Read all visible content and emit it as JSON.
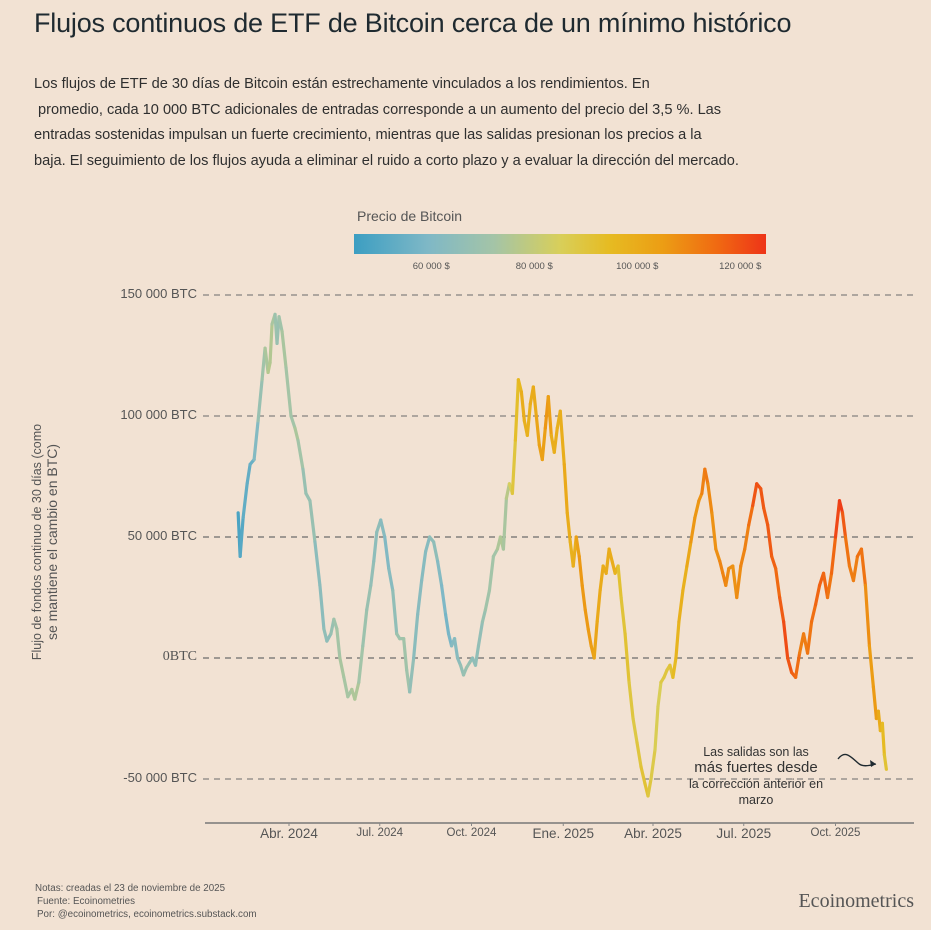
{
  "title": "Flujos continuos de ETF de Bitcoin cerca de un mínimo histórico",
  "subtitle_lines": [
    "Los flujos de ETF de 30 días de Bitcoin están estrechamente vinculados a los rendimientos. En",
    "promedio, cada 10 000 BTC adicionales de entradas corresponde a un aumento del precio del 3,5 %. Las",
    "entradas sostenidas impulsan un fuerte crecimiento, mientras que las salidas presionan los precios a la",
    "baja. El seguimiento de los flujos ayuda a eliminar el ruido a corto plazo y a evaluar la dirección del mercado."
  ],
  "legend": {
    "title": "Precio de Bitcoin",
    "ticks": [
      "60 000 $",
      "80 000 $",
      "100 000 $",
      "120 000 $"
    ],
    "tick_values": [
      60000,
      80000,
      100000,
      120000
    ],
    "range": [
      45000,
      125000
    ],
    "colors": [
      "#3c9ec2",
      "#7fb8c6",
      "#a4c4a7",
      "#d8cf5a",
      "#e6bb22",
      "#ec9d14",
      "#f06a12",
      "#ee3418"
    ]
  },
  "notes": {
    "line1": "Notas: creadas el 23 de noviembre de 2025",
    "line2": "Fuente: Ecoinometries",
    "line3": "Por: @ecoinometrics, ecoinometrics.substack.com"
  },
  "brand": "Ecoinometrics",
  "annotation": {
    "line1": "Las salidas son las",
    "line2": "más fuertes desde",
    "line3": "la corrección anterior en",
    "line4": "marzo"
  },
  "chart_data": {
    "type": "line",
    "title": "Flujos continuos de ETF de Bitcoin cerca de un mínimo histórico",
    "xlabel": "",
    "ylabel": "Flujo de fondos continuo de 30 días (como se mantiene el cambio en BTC)",
    "y_unit": "BTC",
    "ylim": [
      -60000,
      150000
    ],
    "y_ticks": [
      150000,
      100000,
      50000,
      0,
      -50000
    ],
    "y_tick_labels": [
      "150 000 BTC",
      "100 000 BTC",
      "50 000 BTC",
      "0BTC",
      "-50 000 BTC"
    ],
    "x_ticks": [
      "2024-04-01",
      "2024-07-01",
      "2024-10-01",
      "2025-01-01",
      "2025-04-01",
      "2025-07-01",
      "2025-10-01"
    ],
    "x_tick_labels": [
      "Abr. 2024",
      "Jul. 2024",
      "Oct. 2024",
      "Ene. 2025",
      "Abr. 2025",
      "Jul. 2025",
      "Oct. 2025"
    ],
    "xlim": [
      "2023-12-10",
      "2025-12-20"
    ],
    "grid": "horizontal dashed",
    "color_by": "Bitcoin price (USD)",
    "series": [
      {
        "name": "30-day rolling ETF flow (BTC), colored by BTC price",
        "points": [
          [
            "2024-02-10",
            60000,
            47000
          ],
          [
            "2024-02-12",
            42000,
            48000
          ],
          [
            "2024-02-15",
            58000,
            51000
          ],
          [
            "2024-02-19",
            72000,
            52000
          ],
          [
            "2024-02-22",
            80000,
            51500
          ],
          [
            "2024-02-26",
            82000,
            54000
          ],
          [
            "2024-03-01",
            98000,
            62000
          ],
          [
            "2024-03-05",
            115000,
            66000
          ],
          [
            "2024-03-08",
            128000,
            68000
          ],
          [
            "2024-03-11",
            118000,
            71000
          ],
          [
            "2024-03-13",
            122000,
            72000
          ],
          [
            "2024-03-15",
            138000,
            70000
          ],
          [
            "2024-03-18",
            142000,
            68000
          ],
          [
            "2024-03-20",
            130000,
            63000
          ],
          [
            "2024-03-22",
            141000,
            66000
          ],
          [
            "2024-03-25",
            135000,
            68000
          ],
          [
            "2024-03-29",
            120000,
            70000
          ],
          [
            "2024-04-03",
            100000,
            66000
          ],
          [
            "2024-04-07",
            95000,
            69000
          ],
          [
            "2024-04-10",
            90000,
            70000
          ],
          [
            "2024-04-15",
            78000,
            65000
          ],
          [
            "2024-04-18",
            68000,
            63000
          ],
          [
            "2024-04-22",
            65000,
            65000
          ],
          [
            "2024-04-27",
            48000,
            63000
          ],
          [
            "2024-05-02",
            30000,
            58000
          ],
          [
            "2024-05-06",
            12000,
            63000
          ],
          [
            "2024-05-09",
            7000,
            61000
          ],
          [
            "2024-05-13",
            10000,
            62000
          ],
          [
            "2024-05-16",
            16000,
            66000
          ],
          [
            "2024-05-19",
            12000,
            67000
          ],
          [
            "2024-05-22",
            0,
            69000
          ],
          [
            "2024-05-26",
            -8000,
            69000
          ],
          [
            "2024-05-30",
            -16000,
            68000
          ],
          [
            "2024-06-03",
            -13000,
            69000
          ],
          [
            "2024-06-06",
            -17000,
            71000
          ],
          [
            "2024-06-10",
            -10000,
            69000
          ],
          [
            "2024-06-14",
            5000,
            66000
          ],
          [
            "2024-06-18",
            20000,
            65000
          ],
          [
            "2024-06-22",
            30000,
            64000
          ],
          [
            "2024-06-25",
            40000,
            61000
          ],
          [
            "2024-06-28",
            52000,
            61000
          ],
          [
            "2024-07-02",
            57000,
            62000
          ],
          [
            "2024-07-06",
            50000,
            57000
          ],
          [
            "2024-07-10",
            37000,
            58000
          ],
          [
            "2024-07-14",
            28000,
            60000
          ],
          [
            "2024-07-18",
            10000,
            64000
          ],
          [
            "2024-07-21",
            8000,
            67000
          ],
          [
            "2024-07-25",
            8000,
            66000
          ],
          [
            "2024-07-28",
            -5000,
            68000
          ],
          [
            "2024-07-31",
            -14000,
            65000
          ],
          [
            "2024-08-04",
            0,
            60000
          ],
          [
            "2024-08-08",
            18000,
            60000
          ],
          [
            "2024-08-12",
            32000,
            59000
          ],
          [
            "2024-08-16",
            44000,
            59000
          ],
          [
            "2024-08-20",
            50000,
            59000
          ],
          [
            "2024-08-24",
            48000,
            64000
          ],
          [
            "2024-08-28",
            40000,
            59000
          ],
          [
            "2024-09-01",
            30000,
            57000
          ],
          [
            "2024-09-05",
            18000,
            56000
          ],
          [
            "2024-09-08",
            10000,
            54000
          ],
          [
            "2024-09-11",
            5000,
            57000
          ],
          [
            "2024-09-14",
            8000,
            60000
          ],
          [
            "2024-09-17",
            0,
            58000
          ],
          [
            "2024-09-20",
            -3000,
            63000
          ],
          [
            "2024-09-23",
            -7000,
            63000
          ],
          [
            "2024-09-26",
            -4000,
            65000
          ],
          [
            "2024-09-29",
            -2000,
            65000
          ],
          [
            "2024-10-02",
            0,
            61000
          ],
          [
            "2024-10-05",
            -3000,
            62000
          ],
          [
            "2024-10-08",
            5000,
            62000
          ],
          [
            "2024-10-12",
            15000,
            63000
          ],
          [
            "2024-10-15",
            20000,
            66000
          ],
          [
            "2024-10-19",
            28000,
            68000
          ],
          [
            "2024-10-23",
            42000,
            67000
          ],
          [
            "2024-10-27",
            45000,
            68000
          ],
          [
            "2024-10-30",
            50000,
            72000
          ],
          [
            "2024-11-02",
            45000,
            69000
          ],
          [
            "2024-11-05",
            66000,
            69000
          ],
          [
            "2024-11-08",
            72000,
            76000
          ],
          [
            "2024-11-11",
            68000,
            82000
          ],
          [
            "2024-11-14",
            90000,
            88000
          ],
          [
            "2024-11-17",
            115000,
            90000
          ],
          [
            "2024-11-20",
            110000,
            94000
          ],
          [
            "2024-11-23",
            98000,
            98000
          ],
          [
            "2024-11-26",
            92000,
            92000
          ],
          [
            "2024-11-29",
            105000,
            97000
          ],
          [
            "2024-12-02",
            112000,
            96000
          ],
          [
            "2024-12-05",
            100000,
            98000
          ],
          [
            "2024-12-08",
            88000,
            100000
          ],
          [
            "2024-12-11",
            82000,
            101000
          ],
          [
            "2024-12-14",
            95000,
            101000
          ],
          [
            "2024-12-17",
            108000,
            106000
          ],
          [
            "2024-12-20",
            92000,
            97000
          ],
          [
            "2024-12-23",
            85000,
            95000
          ],
          [
            "2024-12-26",
            95000,
            96000
          ],
          [
            "2024-12-29",
            102000,
            94000
          ],
          [
            "2025-01-02",
            80000,
            97000
          ],
          [
            "2025-01-05",
            60000,
            98000
          ],
          [
            "2025-01-08",
            48000,
            95000
          ],
          [
            "2025-01-11",
            38000,
            94000
          ],
          [
            "2025-01-14",
            50000,
            97000
          ],
          [
            "2025-01-17",
            42000,
            104000
          ],
          [
            "2025-01-20",
            30000,
            102000
          ],
          [
            "2025-01-23",
            20000,
            104000
          ],
          [
            "2025-01-26",
            12000,
            102000
          ],
          [
            "2025-01-29",
            5000,
            103000
          ],
          [
            "2025-02-01",
            0,
            100000
          ],
          [
            "2025-02-04",
            15000,
            98000
          ],
          [
            "2025-02-07",
            28000,
            97000
          ],
          [
            "2025-02-10",
            38000,
            97000
          ],
          [
            "2025-02-13",
            35000,
            96000
          ],
          [
            "2025-02-16",
            45000,
            97000
          ],
          [
            "2025-02-19",
            40000,
            96000
          ],
          [
            "2025-02-22",
            35000,
            96000
          ],
          [
            "2025-02-25",
            38000,
            91000
          ],
          [
            "2025-02-28",
            25000,
            84000
          ],
          [
            "2025-03-04",
            10000,
            88000
          ],
          [
            "2025-03-08",
            -10000,
            86000
          ],
          [
            "2025-03-12",
            -25000,
            83000
          ],
          [
            "2025-03-16",
            -35000,
            84000
          ],
          [
            "2025-03-20",
            -45000,
            86000
          ],
          [
            "2025-03-24",
            -52000,
            87000
          ],
          [
            "2025-03-27",
            -57000,
            87000
          ],
          [
            "2025-03-30",
            -50000,
            82000
          ],
          [
            "2025-04-03",
            -38000,
            83000
          ],
          [
            "2025-04-06",
            -20000,
            78000
          ],
          [
            "2025-04-09",
            -10000,
            82000
          ],
          [
            "2025-04-12",
            -8000,
            85000
          ],
          [
            "2025-04-15",
            -5000,
            85000
          ],
          [
            "2025-04-18",
            -3000,
            85000
          ],
          [
            "2025-04-21",
            -8000,
            88000
          ],
          [
            "2025-04-24",
            0,
            93000
          ],
          [
            "2025-04-27",
            15000,
            94000
          ],
          [
            "2025-05-01",
            28000,
            96000
          ],
          [
            "2025-05-05",
            38000,
            94000
          ],
          [
            "2025-05-09",
            48000,
            103000
          ],
          [
            "2025-05-13",
            58000,
            104000
          ],
          [
            "2025-05-17",
            65000,
            103000
          ],
          [
            "2025-05-20",
            68000,
            106000
          ],
          [
            "2025-05-23",
            78000,
            111000
          ],
          [
            "2025-05-26",
            72000,
            109000
          ],
          [
            "2025-05-30",
            60000,
            104000
          ],
          [
            "2025-06-03",
            45000,
            105000
          ],
          [
            "2025-06-07",
            40000,
            105000
          ],
          [
            "2025-06-10",
            35000,
            110000
          ],
          [
            "2025-06-13",
            30000,
            106000
          ],
          [
            "2025-06-16",
            37000,
            107000
          ],
          [
            "2025-06-20",
            38000,
            104000
          ],
          [
            "2025-06-24",
            25000,
            105000
          ],
          [
            "2025-06-28",
            38000,
            107000
          ],
          [
            "2025-07-02",
            45000,
            108000
          ],
          [
            "2025-07-06",
            55000,
            109000
          ],
          [
            "2025-07-10",
            63000,
            116000
          ],
          [
            "2025-07-14",
            72000,
            120000
          ],
          [
            "2025-07-18",
            70000,
            118000
          ],
          [
            "2025-07-21",
            62000,
            117000
          ],
          [
            "2025-07-25",
            55000,
            116000
          ],
          [
            "2025-07-29",
            42000,
            118000
          ],
          [
            "2025-08-02",
            37000,
            113000
          ],
          [
            "2025-08-06",
            25000,
            114000
          ],
          [
            "2025-08-10",
            15000,
            119000
          ],
          [
            "2025-08-14",
            0,
            121000
          ],
          [
            "2025-08-18",
            -6000,
            115000
          ],
          [
            "2025-08-22",
            -8000,
            116000
          ],
          [
            "2025-08-26",
            2000,
            110000
          ],
          [
            "2025-08-30",
            10000,
            108000
          ],
          [
            "2025-09-03",
            2000,
            111000
          ],
          [
            "2025-09-07",
            15000,
            111000
          ],
          [
            "2025-09-11",
            22000,
            114000
          ],
          [
            "2025-09-15",
            30000,
            115000
          ],
          [
            "2025-09-19",
            35000,
            116000
          ],
          [
            "2025-09-23",
            25000,
            112000
          ],
          [
            "2025-09-27",
            35000,
            110000
          ],
          [
            "2025-10-01",
            50000,
            118000
          ],
          [
            "2025-10-05",
            65000,
            124000
          ],
          [
            "2025-10-08",
            60000,
            122000
          ],
          [
            "2025-10-11",
            50000,
            112000
          ],
          [
            "2025-10-15",
            38000,
            111000
          ],
          [
            "2025-10-19",
            32000,
            108000
          ],
          [
            "2025-10-23",
            42000,
            110000
          ],
          [
            "2025-10-27",
            45000,
            114000
          ],
          [
            "2025-10-31",
            30000,
            109000
          ],
          [
            "2025-11-04",
            5000,
            102000
          ],
          [
            "2025-11-08",
            -12000,
            102000
          ],
          [
            "2025-11-11",
            -25000,
            103000
          ],
          [
            "2025-11-13",
            -22000,
            99000
          ],
          [
            "2025-11-15",
            -30000,
            95000
          ],
          [
            "2025-11-17",
            -27000,
            92000
          ],
          [
            "2025-11-19",
            -40000,
            89000
          ],
          [
            "2025-11-21",
            -46000,
            85000
          ]
        ]
      }
    ],
    "annotation": "Las salidas son las más fuertes desde la corrección anterior en marzo"
  }
}
